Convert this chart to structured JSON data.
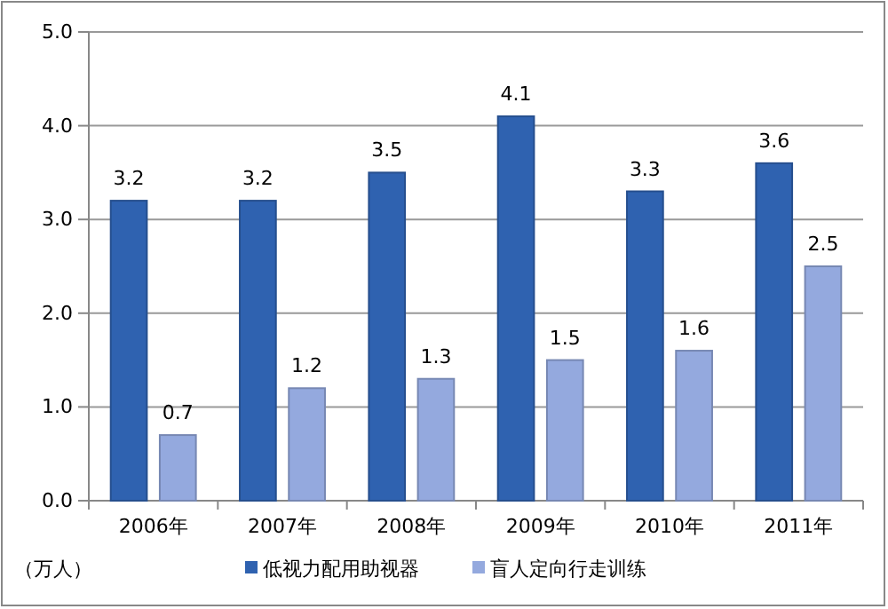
{
  "chart_data": {
    "type": "bar",
    "ylabel": "（万人）",
    "categories": [
      "2006年",
      "2007年",
      "2008年",
      "2009年",
      "2010年",
      "2011年"
    ],
    "series": [
      {
        "name": "低视力配用助视器",
        "color": "#2f62b0",
        "values": [
          3.2,
          3.2,
          3.5,
          4.1,
          3.3,
          3.6
        ]
      },
      {
        "name": "盲人定向行走训练",
        "color": "#94a9de",
        "values": [
          0.7,
          1.2,
          1.3,
          1.5,
          1.6,
          2.5
        ]
      }
    ],
    "ylim": [
      0,
      5
    ],
    "yticks": [
      {
        "value": 0,
        "label": "0.0"
      },
      {
        "value": 1,
        "label": "1.0"
      },
      {
        "value": 2,
        "label": "2.0"
      },
      {
        "value": 3,
        "label": "3.0"
      },
      {
        "value": 4,
        "label": "4.0"
      },
      {
        "value": 5,
        "label": "5.0"
      }
    ],
    "grid": "y",
    "legend": "bottom",
    "data_labels": true
  }
}
